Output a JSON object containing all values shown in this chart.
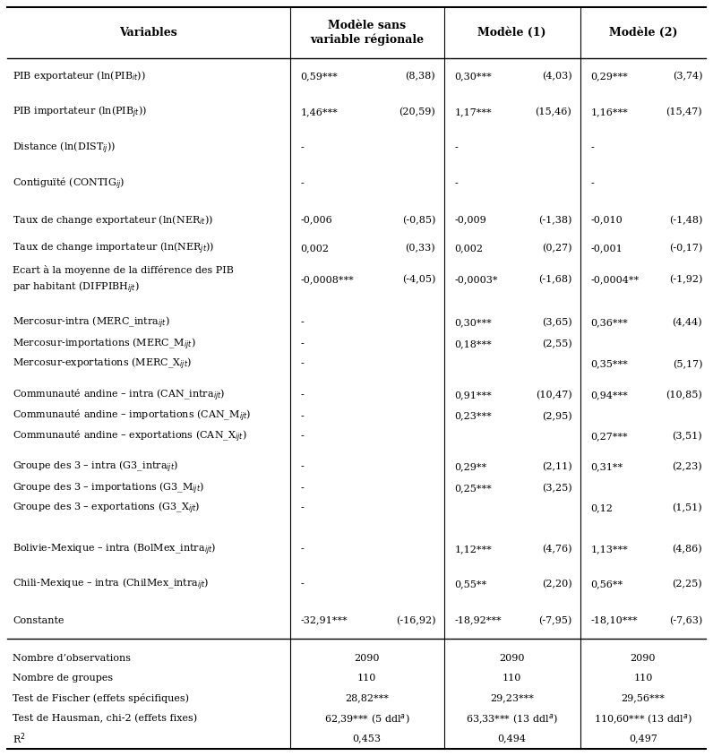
{
  "col_headers": [
    "Variables",
    "Modèle sans\nvariable régionale",
    "Modèle (1)",
    "Modèle (2)"
  ],
  "rows": [
    {
      "label": "PIB exportateur (ln(PIB$_{it}$))",
      "vals": [
        "0,59***",
        "(8,38)",
        "0,30***",
        "(4,03)",
        "0,29***",
        "(3,74)"
      ],
      "tall": true,
      "group_start": false
    },
    {
      "label": "PIB importateur (ln(PIB$_{jt}$))",
      "vals": [
        "1,46***",
        "(20,59)",
        "1,17***",
        "(15,46)",
        "1,16***",
        "(15,47)"
      ],
      "tall": true,
      "group_start": false
    },
    {
      "label": "Distance (ln(DIST$_{ij}$))",
      "vals": [
        "-",
        "",
        "-",
        "",
        "-",
        ""
      ],
      "tall": true,
      "group_start": false
    },
    {
      "label": "Contiguïté (CONTIG$_{ij}$)",
      "vals": [
        "-",
        "",
        "-",
        "",
        "-",
        ""
      ],
      "tall": true,
      "group_start": false
    },
    {
      "label": "Taux de change exportateur (ln(NER$_{it}$))",
      "vals": [
        "-0,006",
        "(-0,85)",
        "-0,009",
        "(-1,38)",
        "-0,010",
        "(-1,48)"
      ],
      "tall": true,
      "group_start": false
    },
    {
      "label": "Taux de change importateur (ln(NER$_{jt}$))",
      "vals": [
        "0,002",
        "(0,33)",
        "0,002",
        "(0,27)",
        "-0,001",
        "(-0,17)"
      ],
      "tall": false,
      "group_start": false
    },
    {
      "label": "Ecart à la moyenne de la différence des PIB\npar habitant (DIFPIBH$_{ijt}$)",
      "vals": [
        "-0,0008***",
        "(-4,05)",
        "-0,0003*",
        "(-1,68)",
        "-0,0004**",
        "(-1,92)"
      ],
      "tall": true,
      "two_line": true,
      "group_start": false
    },
    {
      "label": "Mercosur-intra (MERC_intra$_{ijt}$)",
      "vals": [
        "-",
        "",
        "0,30***",
        "(3,65)",
        "0,36***",
        "(4,44)"
      ],
      "tall": false,
      "group_start": true
    },
    {
      "label": "Mercosur-importations (MERC_M$_{ijt}$)",
      "vals": [
        "-",
        "",
        "0,18***",
        "(2,55)",
        "",
        ""
      ],
      "tall": false,
      "group_start": false
    },
    {
      "label": "Mercosur-exportations (MERC_X$_{ijt}$)",
      "vals": [
        "-",
        "",
        "",
        "",
        "0,35***",
        "(5,17)"
      ],
      "tall": false,
      "group_start": false
    },
    {
      "label": "Communauté andine – intra (CAN_intra$_{ijt}$)",
      "vals": [
        "-",
        "",
        "0,91***",
        "(10,47)",
        "0,94***",
        "(10,85)"
      ],
      "tall": false,
      "group_start": true
    },
    {
      "label": "Communauté andine – importations (CAN_M$_{ijt}$)",
      "vals": [
        "-",
        "",
        "0,23***",
        "(2,95)",
        "",
        ""
      ],
      "tall": false,
      "group_start": false
    },
    {
      "label": "Communauté andine – exportations (CAN_X$_{ijt}$)",
      "vals": [
        "-",
        "",
        "",
        "",
        "0,27***",
        "(3,51)"
      ],
      "tall": false,
      "group_start": false
    },
    {
      "label": "Groupe des 3 – intra (G3_intra$_{ijt}$)",
      "vals": [
        "-",
        "",
        "0,29**",
        "(2,11)",
        "0,31**",
        "(2,23)"
      ],
      "tall": false,
      "group_start": true
    },
    {
      "label": "Groupe des 3 – importations (G3_M$_{ijt}$)",
      "vals": [
        "-",
        "",
        "0,25***",
        "(3,25)",
        "",
        ""
      ],
      "tall": false,
      "group_start": false
    },
    {
      "label": "Groupe des 3 – exportations (G3_X$_{ijt}$)",
      "vals": [
        "-",
        "",
        "",
        "",
        "0,12",
        "(1,51)"
      ],
      "tall": false,
      "group_start": false
    },
    {
      "label": "Bolivie-Mexique – intra (BolMex_intra$_{ijt}$)",
      "vals": [
        "-",
        "",
        "1,12***",
        "(4,76)",
        "1,13***",
        "(4,86)"
      ],
      "tall": true,
      "group_start": true
    },
    {
      "label": "Chili-Mexique – intra (ChilMex_intra$_{ijt}$)",
      "vals": [
        "-",
        "",
        "0,55**",
        "(2,20)",
        "0,56**",
        "(2,25)"
      ],
      "tall": true,
      "group_start": false
    },
    {
      "label": "Constante",
      "vals": [
        "-32,91***",
        "(-16,92)",
        "-18,92***",
        "(-7,95)",
        "-18,10***",
        "(-7,63)"
      ],
      "tall": true,
      "group_start": false
    }
  ],
  "footer_rows": [
    {
      "label": "Nombre d’observations",
      "vals": [
        "2090",
        "2090",
        "2090"
      ]
    },
    {
      "label": "Nombre de groupes",
      "vals": [
        "110",
        "110",
        "110"
      ]
    },
    {
      "label": "Test de Fischer (effets spécifiques)",
      "vals": [
        "28,82***",
        "29,23***",
        "29,56***"
      ]
    },
    {
      "label": "Test de Hausman, chi-2 (effets fixes)",
      "vals": [
        "62,39*** (5 ddl$^{a}$)",
        "63,33*** (13 ddl$^{a}$)",
        "110,60*** (13 ddl$^{a}$)"
      ]
    },
    {
      "label": "R$^2$",
      "vals": [
        "0,453",
        "0,494",
        "0,497"
      ]
    }
  ],
  "sep1": 0.405,
  "sep2": 0.625,
  "sep3": 0.82,
  "bg_color": "#ffffff",
  "text_color": "#000000",
  "font_size": 8.0,
  "header_font_size": 9.0
}
